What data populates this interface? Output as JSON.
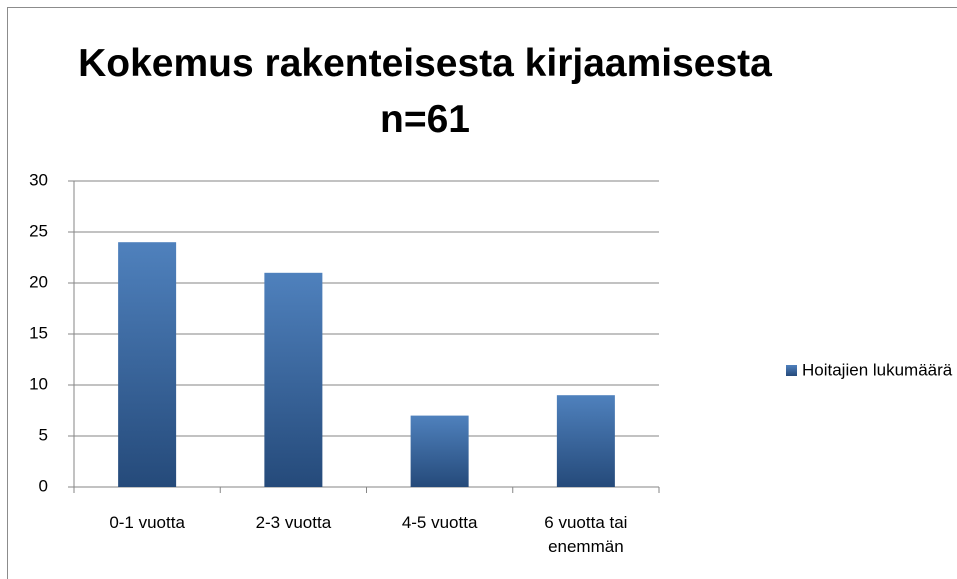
{
  "chart_data": {
    "type": "bar",
    "title": "Kokemus rakenteisesta kirjaamisesta n=61",
    "categories": [
      "0-1 vuotta",
      "2-3 vuotta",
      "4-5 vuotta",
      "6 vuotta tai enemmän"
    ],
    "series": [
      {
        "name": "Hoitajien lukumäärä",
        "color": "#4f81bd",
        "values": [
          24,
          21,
          7,
          9
        ]
      }
    ],
    "ylim": [
      0,
      30
    ],
    "yticks": [
      0,
      5,
      10,
      15,
      20,
      25,
      30
    ],
    "grid": true,
    "legend": "right"
  }
}
